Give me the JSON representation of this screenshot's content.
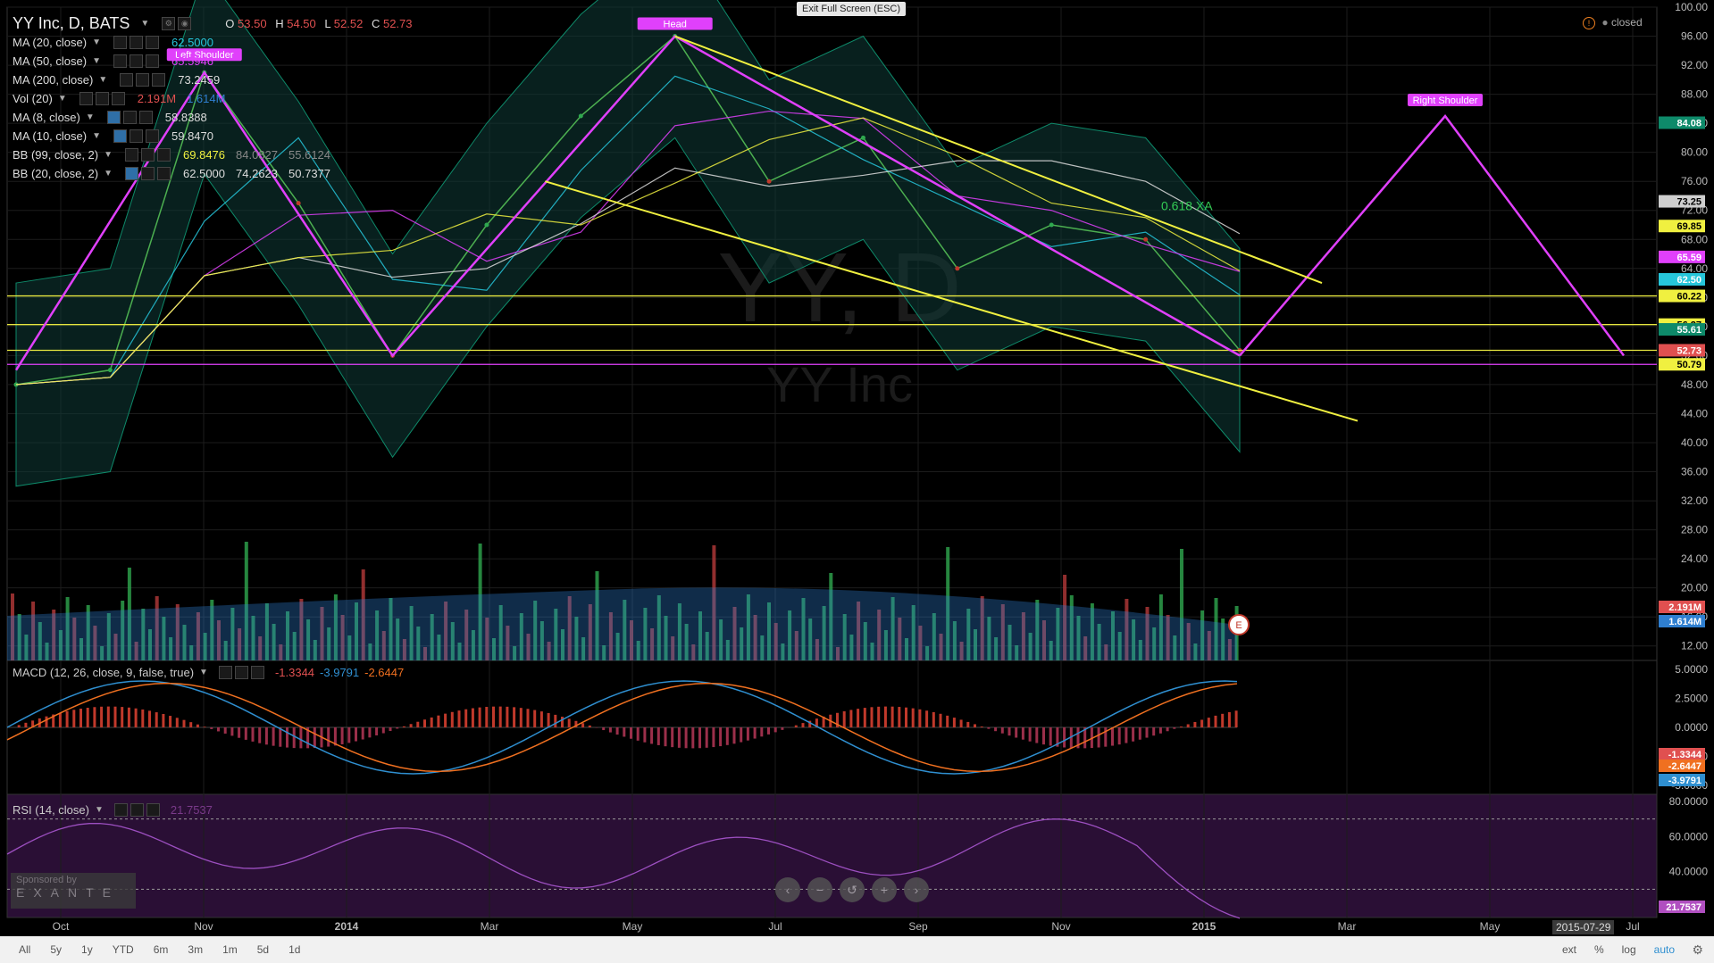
{
  "header": {
    "symbol": "YY Inc, D, BATS",
    "ohlc": {
      "o_label": "O",
      "o": "53.50",
      "h_label": "H",
      "h": "54.50",
      "l_label": "L",
      "l": "52.52",
      "c_label": "C",
      "c": "52.73"
    },
    "exit_fullscreen": "Exit Full Screen (ESC)",
    "status": "closed"
  },
  "indicators": [
    {
      "name": "MA (20, close)",
      "values": [
        "62.5000"
      ],
      "color": "#26c6da"
    },
    {
      "name": "MA (50, close)",
      "values": [
        "65.5946"
      ],
      "color": "#e040fb"
    },
    {
      "name": "MA (200, close)",
      "values": [
        "73.2459"
      ],
      "color": "#e0e0e0"
    },
    {
      "name": "Vol (20)",
      "values": [
        "2.191M",
        "1.614M"
      ],
      "color": "#2f7fd0"
    },
    {
      "name": "MA (8, close)",
      "values": [
        "58.8388"
      ],
      "color": "#cccccc"
    },
    {
      "name": "MA (10, close)",
      "values": [
        "59.8470"
      ],
      "color": "#cccccc"
    },
    {
      "name": "BB (99, close, 2)",
      "values": [
        "69.8476",
        "84.0827",
        "55.6124"
      ],
      "color": "#f0f040"
    },
    {
      "name": "BB (20, close, 2)",
      "values": [
        "62.5000",
        "74.2623",
        "50.7377"
      ],
      "color": "#dddddd"
    }
  ],
  "macd_legend": {
    "name": "MACD (12, 26, close, 9, false, true)",
    "values": [
      "-1.3344",
      "-3.9791",
      "-2.6447"
    ]
  },
  "rsi_legend": {
    "name": "RSI (14, close)",
    "value": "21.7537"
  },
  "sponsor": {
    "line1": "Sponsored by",
    "line2": "EXANTE"
  },
  "date_marker": "2015-07-29",
  "bottom_bar": {
    "timeframes": [
      "All",
      "5y",
      "1y",
      "YTD",
      "6m",
      "3m",
      "1m",
      "5d",
      "1d"
    ],
    "options": [
      "ext",
      "%",
      "log",
      "auto"
    ]
  },
  "chart_data": {
    "type": "line",
    "title": "YY Inc, D, BATS",
    "watermark": [
      "YY, D",
      "YY Inc"
    ],
    "x_tick_labels": [
      "Oct",
      "Nov",
      "2014",
      "Mar",
      "May",
      "Jul",
      "Sep",
      "Nov",
      "2015",
      "Mar",
      "May",
      "Jul"
    ],
    "price_axis": {
      "ylim": [
        10,
        100
      ],
      "ticks": [
        "100.00",
        "96.00",
        "92.00",
        "88.00",
        "84.00",
        "80.00",
        "76.00",
        "72.00",
        "68.00",
        "64.00",
        "60.00",
        "56.00",
        "52.00",
        "48.00",
        "44.00",
        "40.00",
        "36.00",
        "32.00",
        "28.00",
        "24.00",
        "20.00",
        "16.00",
        "12.00"
      ]
    },
    "price_badges": [
      {
        "label": "84.08",
        "color": "#0e8a6a"
      },
      {
        "label": "73.25",
        "color": "#cfcfcf"
      },
      {
        "label": "69.85",
        "color": "#f0f040"
      },
      {
        "label": "65.59",
        "color": "#e040fb"
      },
      {
        "label": "62.50",
        "color": "#26c6da"
      },
      {
        "label": "60.22",
        "color": "#f0f040"
      },
      {
        "label": "56.27",
        "color": "#f0f040"
      },
      {
        "label": "55.61",
        "color": "#0e8a6a"
      },
      {
        "label": "52.73",
        "color": "#e05050"
      },
      {
        "label": "50.79",
        "color": "#f0f040"
      },
      {
        "label": "2.191M",
        "color": "#e05050"
      },
      {
        "label": "1.614M",
        "color": "#2f7fd0"
      }
    ],
    "price_series": {
      "x": [
        "Sep 2013",
        "Jan 2014",
        "Mar 2014",
        "Apr 2014",
        "May 2014",
        "Jul 2014",
        "Aug 2014",
        "Sep 2014",
        "Oct 2014",
        "Nov 2014",
        "Dec 2014",
        "Jan 2015",
        "Feb 2015",
        "Mar 2015"
      ],
      "close": [
        48,
        50,
        91,
        73,
        52,
        70,
        85,
        96,
        76,
        82,
        64,
        70,
        68,
        52.73
      ]
    },
    "pattern_labels": [
      "Left Shoulder",
      "Head",
      "Right Shoulder"
    ],
    "fib_label": "0.618 XA",
    "horizontal_levels": [
      60.22,
      56.27,
      52.73,
      50.79
    ],
    "macd": {
      "ylim": [
        -5,
        5
      ],
      "ticks": [
        "5.0000",
        "2.5000",
        "0.0000",
        "-2.5000",
        "-5.0000"
      ],
      "badges": [
        {
          "label": "-1.3344",
          "color": "#e05050"
        },
        {
          "label": "-2.6447",
          "color": "#f07020"
        },
        {
          "label": "-3.9791",
          "color": "#2f8fd0"
        }
      ]
    },
    "rsi": {
      "ylim": [
        20,
        80
      ],
      "ticks": [
        "80.0000",
        "60.0000",
        "40.0000"
      ],
      "badge": {
        "label": "21.7537",
        "color": "#b04fc0"
      }
    },
    "grid": true
  }
}
